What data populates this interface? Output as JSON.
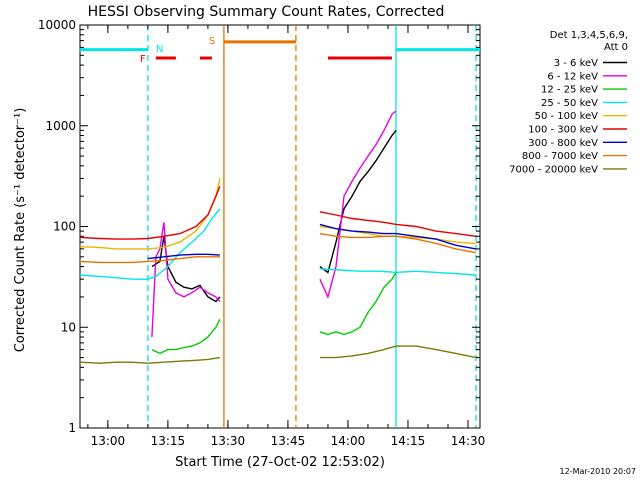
{
  "chart_data": {
    "type": "line",
    "title": "HESSI Observing Summary Count Rates, Corrected",
    "xlabel": "Start Time (27-Oct-02 12:53:02)",
    "ylabel": "Corrected Count Rate (s⁻¹ detector⁻¹)",
    "xlim": [
      "12:53:02",
      "14:33:00"
    ],
    "ylim": [
      1,
      10000
    ],
    "yscale": "log",
    "x_ticks": [
      "13:00",
      "13:15",
      "13:30",
      "13:45",
      "14:00",
      "14:15",
      "14:30"
    ],
    "y_ticks": [
      "1",
      "10",
      "100",
      "1000",
      "10000"
    ],
    "legend_header": [
      "Det 1,3,4,5,6,9,",
      "Att 0"
    ],
    "legend_position": "right",
    "timestamp": "12-Mar-2010 20:07",
    "series": [
      {
        "name": "3 - 6 keV",
        "color": "#000000",
        "points": [
          [
            "13:11",
            40
          ],
          [
            "13:13",
            45
          ],
          [
            "13:14",
            80
          ],
          [
            "13:15",
            40
          ],
          [
            "13:17",
            28
          ],
          [
            "13:19",
            25
          ],
          [
            "13:21",
            24
          ],
          [
            "13:23",
            26
          ],
          [
            "13:25",
            20
          ],
          [
            "13:27",
            18
          ],
          [
            "13:28",
            20
          ],
          [
            "13:53",
            40
          ],
          [
            "13:55",
            35
          ],
          [
            "13:57",
            70
          ],
          [
            "13:59",
            150
          ],
          [
            "14:01",
            200
          ],
          [
            "14:03",
            280
          ],
          [
            "14:05",
            350
          ],
          [
            "14:07",
            450
          ],
          [
            "14:09",
            600
          ],
          [
            "14:11",
            800
          ],
          [
            "14:12",
            900
          ]
        ]
      },
      {
        "name": "6 - 12 keV",
        "color": "#e600e6",
        "points": [
          [
            "13:11",
            8
          ],
          [
            "13:12",
            50
          ],
          [
            "13:13",
            60
          ],
          [
            "13:14",
            110
          ],
          [
            "13:15",
            30
          ],
          [
            "13:17",
            22
          ],
          [
            "13:19",
            20
          ],
          [
            "13:21",
            22
          ],
          [
            "13:23",
            25
          ],
          [
            "13:25",
            22
          ],
          [
            "13:27",
            20
          ],
          [
            "13:28",
            18
          ],
          [
            "13:53",
            30
          ],
          [
            "13:55",
            20
          ],
          [
            "13:57",
            40
          ],
          [
            "13:59",
            200
          ],
          [
            "14:01",
            280
          ],
          [
            "14:03",
            380
          ],
          [
            "14:05",
            500
          ],
          [
            "14:07",
            650
          ],
          [
            "14:09",
            900
          ],
          [
            "14:11",
            1300
          ],
          [
            "14:12",
            1400
          ]
        ]
      },
      {
        "name": "12 - 25 keV",
        "color": "#00cc00",
        "points": [
          [
            "13:11",
            6
          ],
          [
            "13:13",
            5.5
          ],
          [
            "13:15",
            6
          ],
          [
            "13:17",
            6
          ],
          [
            "13:19",
            6.3
          ],
          [
            "13:21",
            6.5
          ],
          [
            "13:23",
            7
          ],
          [
            "13:25",
            8
          ],
          [
            "13:27",
            10
          ],
          [
            "13:28",
            12
          ],
          [
            "13:53",
            9
          ],
          [
            "13:55",
            8.5
          ],
          [
            "13:57",
            9
          ],
          [
            "13:59",
            8.5
          ],
          [
            "14:01",
            9
          ],
          [
            "14:03",
            10
          ],
          [
            "14:05",
            14
          ],
          [
            "14:07",
            18
          ],
          [
            "14:09",
            25
          ],
          [
            "14:11",
            30
          ],
          [
            "14:12",
            35
          ]
        ]
      },
      {
        "name": "25 - 50 keV",
        "color": "#00e6e6",
        "points": [
          [
            "12:53",
            33
          ],
          [
            "12:58",
            32
          ],
          [
            "13:02",
            31
          ],
          [
            "13:06",
            30
          ],
          [
            "13:10",
            30
          ],
          [
            "13:12",
            32
          ],
          [
            "13:15",
            40
          ],
          [
            "13:18",
            55
          ],
          [
            "13:21",
            70
          ],
          [
            "13:24",
            90
          ],
          [
            "13:26",
            120
          ],
          [
            "13:28",
            150
          ],
          [
            "13:53",
            38
          ],
          [
            "13:58",
            37
          ],
          [
            "14:03",
            36
          ],
          [
            "14:08",
            36
          ],
          [
            "14:12",
            35
          ],
          [
            "14:17",
            36
          ],
          [
            "14:22",
            35
          ],
          [
            "14:27",
            34
          ],
          [
            "14:32",
            33
          ]
        ]
      },
      {
        "name": "50 - 100 keV",
        "color": "#e6b800",
        "points": [
          [
            "12:53",
            63
          ],
          [
            "12:58",
            62
          ],
          [
            "13:02",
            60
          ],
          [
            "13:06",
            60
          ],
          [
            "13:10",
            60
          ],
          [
            "13:14",
            62
          ],
          [
            "13:18",
            70
          ],
          [
            "13:22",
            90
          ],
          [
            "13:25",
            130
          ],
          [
            "13:27",
            200
          ],
          [
            "13:28",
            300
          ],
          [
            "13:53",
            100
          ],
          [
            "13:57",
            95
          ],
          [
            "14:01",
            90
          ],
          [
            "14:05",
            85
          ],
          [
            "14:09",
            80
          ],
          [
            "14:12",
            80
          ],
          [
            "14:17",
            78
          ],
          [
            "14:22",
            75
          ],
          [
            "14:27",
            70
          ],
          [
            "14:32",
            68
          ]
        ]
      },
      {
        "name": "100 - 300 keV",
        "color": "#e60000",
        "points": [
          [
            "12:53",
            78
          ],
          [
            "12:58",
            76
          ],
          [
            "13:02",
            75
          ],
          [
            "13:06",
            75
          ],
          [
            "13:10",
            76
          ],
          [
            "13:14",
            80
          ],
          [
            "13:18",
            85
          ],
          [
            "13:22",
            100
          ],
          [
            "13:25",
            130
          ],
          [
            "13:27",
            200
          ],
          [
            "13:28",
            250
          ],
          [
            "13:53",
            140
          ],
          [
            "13:57",
            130
          ],
          [
            "14:01",
            120
          ],
          [
            "14:05",
            115
          ],
          [
            "14:09",
            110
          ],
          [
            "14:12",
            105
          ],
          [
            "14:17",
            100
          ],
          [
            "14:22",
            90
          ],
          [
            "14:27",
            85
          ],
          [
            "14:32",
            80
          ]
        ]
      },
      {
        "name": "300 - 800 keV",
        "color": "#0000cc",
        "points": [
          [
            "13:10",
            48
          ],
          [
            "13:14",
            50
          ],
          [
            "13:18",
            52
          ],
          [
            "13:22",
            53
          ],
          [
            "13:25",
            53
          ],
          [
            "13:28",
            52
          ],
          [
            "13:53",
            105
          ],
          [
            "13:57",
            95
          ],
          [
            "14:01",
            90
          ],
          [
            "14:05",
            88
          ],
          [
            "14:09",
            85
          ],
          [
            "14:12",
            85
          ],
          [
            "14:17",
            80
          ],
          [
            "14:22",
            75
          ],
          [
            "14:27",
            65
          ],
          [
            "14:32",
            60
          ]
        ]
      },
      {
        "name": "800 - 7000 keV",
        "color": "#e67300",
        "points": [
          [
            "12:53",
            45
          ],
          [
            "12:58",
            44
          ],
          [
            "13:02",
            44
          ],
          [
            "13:06",
            44
          ],
          [
            "13:10",
            45
          ],
          [
            "13:14",
            46
          ],
          [
            "13:18",
            48
          ],
          [
            "13:22",
            50
          ],
          [
            "13:25",
            50
          ],
          [
            "13:28",
            50
          ],
          [
            "13:53",
            85
          ],
          [
            "13:57",
            80
          ],
          [
            "14:01",
            78
          ],
          [
            "14:05",
            78
          ],
          [
            "14:09",
            80
          ],
          [
            "14:12",
            80
          ],
          [
            "14:17",
            75
          ],
          [
            "14:22",
            68
          ],
          [
            "14:27",
            60
          ],
          [
            "14:32",
            55
          ]
        ]
      },
      {
        "name": "7000 - 20000 keV",
        "color": "#7a7a00",
        "points": [
          [
            "12:53",
            4.5
          ],
          [
            "12:58",
            4.4
          ],
          [
            "13:02",
            4.5
          ],
          [
            "13:06",
            4.5
          ],
          [
            "13:10",
            4.4
          ],
          [
            "13:14",
            4.5
          ],
          [
            "13:18",
            4.6
          ],
          [
            "13:22",
            4.7
          ],
          [
            "13:25",
            4.8
          ],
          [
            "13:28",
            5
          ],
          [
            "13:53",
            5
          ],
          [
            "13:57",
            5
          ],
          [
            "14:01",
            5.2
          ],
          [
            "14:05",
            5.5
          ],
          [
            "14:09",
            6
          ],
          [
            "14:12",
            6.5
          ],
          [
            "14:17",
            6.5
          ],
          [
            "14:22",
            6
          ],
          [
            "14:27",
            5.5
          ],
          [
            "14:32",
            5
          ]
        ]
      }
    ],
    "annotations": {
      "night_bars": [
        {
          "label": "",
          "start": "12:53",
          "end": "13:10",
          "value": 5700
        },
        {
          "label": "",
          "start": "14:12",
          "end": "14:33",
          "value": 5700
        }
      ],
      "N": {
        "label": "N",
        "time": "13:10"
      },
      "F": {
        "label": "F",
        "time": "13:11"
      },
      "flare_bars": [
        {
          "start": "13:12",
          "end": "13:17",
          "value": 4700
        },
        {
          "start": "13:23",
          "end": "13:26",
          "value": 4700
        },
        {
          "start": "13:55",
          "end": "14:11",
          "value": 4700
        }
      ],
      "S": {
        "label": "S",
        "time": "13:29"
      },
      "saa_bar": {
        "start": "13:29",
        "end": "13:47",
        "value": 6800
      },
      "vlines": [
        {
          "time": "13:10",
          "color": "#00e6e6",
          "style": "dashed"
        },
        {
          "time": "13:29",
          "color": "#e67300",
          "style": "solid"
        },
        {
          "time": "13:47",
          "color": "#e67300",
          "style": "dashed"
        },
        {
          "time": "14:12",
          "color": "#00e6e6",
          "style": "solid"
        },
        {
          "time": "14:32",
          "color": "#00e6e6",
          "style": "dashed"
        }
      ]
    }
  },
  "colors": {
    "axis": "#000000",
    "night": "#00e6e6",
    "flare": "#e60000",
    "saa": "#e67300"
  }
}
